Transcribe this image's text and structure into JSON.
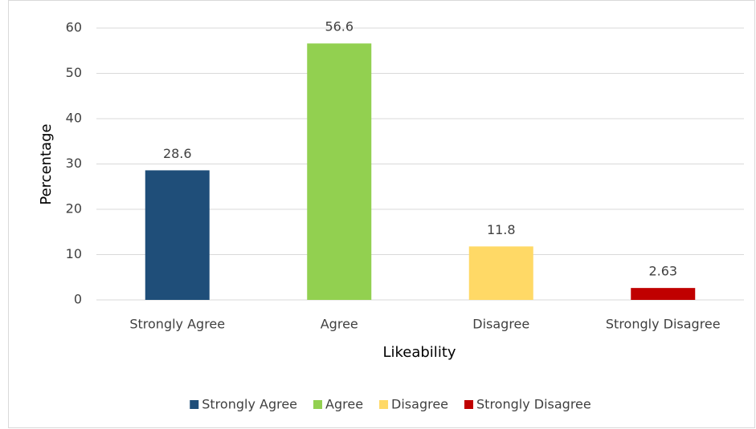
{
  "chart_data": {
    "type": "bar",
    "categories": [
      "Strongly Agree",
      "Agree",
      "Disagree",
      "Strongly Disagree"
    ],
    "values": [
      28.6,
      56.6,
      11.8,
      2.63
    ],
    "colors": [
      "#1f4e79",
      "#92d050",
      "#ffd966",
      "#c00000"
    ],
    "xlabel": "Likeability",
    "ylabel": "Percentage",
    "ylim": [
      0,
      60
    ],
    "yticks": [
      0,
      10,
      20,
      30,
      40,
      50,
      60
    ],
    "grid": true,
    "legend": "bottom"
  }
}
